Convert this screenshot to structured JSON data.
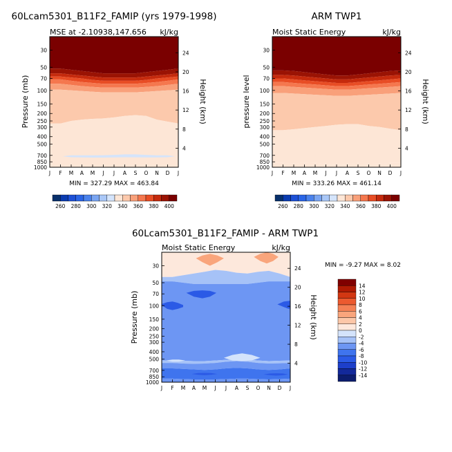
{
  "chart_data": [
    {
      "type": "heatmap",
      "title": "60Lcam5301_B11F2_FAMIP (yrs 1979-1998)",
      "subtitle_left": "MSE at -2.10938,147.656",
      "subtitle_right": "kJ/kg",
      "ylabel": "Pressure (mb)",
      "ylabel_right": "Height (km)",
      "x_ticks": [
        "J",
        "F",
        "M",
        "A",
        "M",
        "J",
        "J",
        "A",
        "S",
        "O",
        "N",
        "D",
        "J"
      ],
      "y_ticks": [
        30,
        50,
        70,
        100,
        150,
        200,
        250,
        300,
        400,
        500,
        700,
        850,
        1000
      ],
      "y_right_ticks": [
        24,
        20,
        16,
        12,
        8,
        4
      ],
      "ylim": [
        1000,
        20
      ],
      "stats_text": "MIN = 327.29 MAX = 463.84",
      "levels": [
        260,
        270,
        280,
        290,
        300,
        310,
        320,
        330,
        340,
        350,
        360,
        370,
        380,
        390,
        400
      ],
      "colorbar_labels": [
        "260",
        "280",
        "300",
        "320",
        "340",
        "360",
        "380",
        "400"
      ],
      "bands": [
        {
          "upper": [
            20,
            20,
            20,
            20,
            20,
            20,
            20,
            20,
            20,
            20,
            20,
            20,
            20
          ],
          "value": 405
        },
        {
          "upper": [
            52,
            52,
            54,
            56,
            58,
            60,
            60,
            60,
            60,
            58,
            56,
            54,
            52
          ],
          "value": 395
        },
        {
          "upper": [
            60,
            60,
            62,
            64,
            66,
            68,
            68,
            68,
            68,
            66,
            64,
            62,
            60
          ],
          "value": 385
        },
        {
          "upper": [
            66,
            66,
            68,
            70,
            73,
            75,
            75,
            75,
            75,
            73,
            70,
            68,
            66
          ],
          "value": 375
        },
        {
          "upper": [
            72,
            72,
            75,
            78,
            80,
            82,
            82,
            82,
            82,
            80,
            78,
            75,
            72
          ],
          "value": 365
        },
        {
          "upper": [
            82,
            82,
            85,
            88,
            90,
            92,
            92,
            92,
            92,
            90,
            88,
            85,
            82
          ],
          "value": 355
        },
        {
          "upper": [
            98,
            98,
            100,
            102,
            104,
            106,
            106,
            106,
            106,
            104,
            102,
            100,
            98
          ],
          "value": 345
        },
        {
          "upper": [
            270,
            270,
            250,
            240,
            235,
            232,
            225,
            215,
            210,
            215,
            240,
            255,
            270
          ],
          "value": 335
        },
        {
          "upper": [
            1000,
            1000,
            1000,
            1000,
            1000,
            1000,
            1000,
            1000,
            1000,
            1000,
            1000,
            1000,
            1000
          ],
          "value": 0
        }
      ],
      "islands": [
        {
          "months": [
            1.2,
            2,
            3,
            4,
            5,
            6,
            7,
            8,
            9,
            10,
            11,
            11.7
          ],
          "top": [
            720,
            700,
            700,
            700,
            698,
            690,
            680,
            680,
            690,
            700,
            700,
            720
          ],
          "bottom": [
            720,
            740,
            745,
            748,
            748,
            745,
            740,
            742,
            745,
            745,
            740,
            720
          ],
          "value": 325
        }
      ]
    },
    {
      "type": "heatmap",
      "title": "ARM TWP1",
      "subtitle_left": "Moist Static Energy",
      "subtitle_right": "kJ/kg",
      "ylabel": "pressure level",
      "ylabel_right": "Height (km)",
      "x_ticks": [
        "J",
        "F",
        "M",
        "A",
        "M",
        "J",
        "J",
        "A",
        "S",
        "O",
        "N",
        "D",
        "J"
      ],
      "y_ticks": [
        30,
        50,
        70,
        100,
        150,
        200,
        250,
        300,
        400,
        500,
        700,
        850,
        1000
      ],
      "y_right_ticks": [
        24,
        20,
        16,
        12,
        8,
        4
      ],
      "ylim": [
        1000,
        20
      ],
      "stats_text": "MIN = 333.26 MAX = 461.14",
      "levels": [
        260,
        270,
        280,
        290,
        300,
        310,
        320,
        330,
        340,
        350,
        360,
        370,
        380,
        390,
        400
      ],
      "colorbar_labels": [
        "260",
        "280",
        "300",
        "320",
        "340",
        "360",
        "380",
        "400"
      ],
      "bands": [
        {
          "upper": [
            20,
            20,
            20,
            20,
            20,
            20,
            20,
            20,
            20,
            20,
            20,
            20,
            20
          ],
          "value": 405
        },
        {
          "upper": [
            55,
            55,
            56,
            58,
            60,
            62,
            64,
            64,
            62,
            60,
            58,
            56,
            55
          ],
          "value": 395
        },
        {
          "upper": [
            63,
            63,
            64,
            66,
            68,
            70,
            72,
            72,
            70,
            68,
            66,
            64,
            63
          ],
          "value": 385
        },
        {
          "upper": [
            70,
            70,
            72,
            74,
            76,
            78,
            80,
            80,
            78,
            76,
            74,
            72,
            70
          ],
          "value": 375
        },
        {
          "upper": [
            78,
            78,
            80,
            82,
            84,
            86,
            88,
            88,
            86,
            84,
            82,
            80,
            78
          ],
          "value": 365
        },
        {
          "upper": [
            88,
            88,
            90,
            92,
            94,
            96,
            98,
            98,
            96,
            94,
            92,
            90,
            88
          ],
          "value": 355
        },
        {
          "upper": [
            108,
            108,
            110,
            112,
            114,
            116,
            118,
            118,
            116,
            114,
            112,
            110,
            108
          ],
          "value": 345
        },
        {
          "upper": [
            330,
            330,
            320,
            310,
            300,
            290,
            280,
            275,
            275,
            290,
            300,
            315,
            330
          ],
          "value": 335
        },
        {
          "upper": [
            880,
            880,
            900,
            870,
            880,
            900,
            920,
            900,
            880,
            890,
            900,
            880,
            880
          ],
          "value": 338
        },
        {
          "upper": [
            1000,
            1000,
            1000,
            1000,
            1000,
            1000,
            1000,
            1000,
            1000,
            1000,
            1000,
            1000,
            1000
          ],
          "value": 0
        }
      ],
      "islands": []
    },
    {
      "type": "heatmap",
      "title": "60Lcam5301_B11F2_FAMIP - ARM TWP1",
      "subtitle_left": "Moist Static Energy",
      "subtitle_right": "kJ/kg",
      "ylabel": "Pressure (mb)",
      "ylabel_right": "Height (km)",
      "x_ticks": [
        "J",
        "F",
        "M",
        "A",
        "M",
        "J",
        "J",
        "A",
        "S",
        "O",
        "N",
        "D",
        "J"
      ],
      "y_ticks": [
        30,
        50,
        70,
        100,
        150,
        200,
        250,
        300,
        400,
        500,
        700,
        850,
        1000
      ],
      "y_right_ticks": [
        24,
        20,
        16,
        12,
        8,
        4
      ],
      "ylim": [
        1000,
        20
      ],
      "stats_text": "MIN = -9.27 MAX =    8.02",
      "levels": [
        -14,
        -12,
        -10,
        -8,
        -6,
        -4,
        -2,
        0,
        2,
        4,
        6,
        8,
        10,
        12,
        14
      ],
      "colorbar_labels": [
        "14",
        "12",
        "10",
        "8",
        "6",
        "4",
        "2",
        "0",
        "-2",
        "-4",
        "-6",
        "-8",
        "-10",
        "-12",
        "-14"
      ],
      "bands": [
        {
          "upper": [
            20,
            20,
            20,
            20,
            20,
            20,
            20,
            20,
            20,
            20,
            20,
            20,
            20
          ],
          "value": 1
        },
        {
          "upper": [
            42,
            42,
            40,
            38,
            36,
            34,
            35,
            37,
            38,
            36,
            35,
            38,
            42
          ],
          "value": -3
        },
        {
          "upper": [
            48,
            48,
            50,
            52,
            52,
            52,
            52,
            52,
            52,
            50,
            48,
            48,
            48
          ],
          "value": -5
        },
        {
          "upper": [
            520,
            520,
            525,
            530,
            530,
            520,
            510,
            500,
            505,
            520,
            530,
            525,
            520
          ],
          "value": -3
        },
        {
          "upper": [
            560,
            560,
            570,
            575,
            570,
            560,
            540,
            530,
            540,
            560,
            570,
            565,
            560
          ],
          "value": -5
        },
        {
          "upper": [
            660,
            660,
            670,
            680,
            690,
            680,
            660,
            650,
            660,
            680,
            690,
            680,
            660
          ],
          "value": -7
        },
        {
          "upper": [
            900,
            900,
            910,
            920,
            920,
            920,
            910,
            900,
            900,
            910,
            920,
            910,
            900
          ],
          "value": -5
        },
        {
          "upper": [
            1000,
            1000,
            1000,
            1000,
            1000,
            1000,
            1000,
            1000,
            1000,
            1000,
            1000,
            1000,
            1000
          ],
          "value": 0
        }
      ],
      "islands": [
        {
          "months": [
            0,
            0.6,
            1.2,
            1.8,
            2.3
          ],
          "top": [
            28,
            26,
            25,
            26,
            28
          ],
          "bottom": [
            28,
            32,
            36,
            34,
            28
          ],
          "value": 1
        },
        {
          "months": [
            3.2,
            3.8,
            4.5,
            5.2,
            5.8
          ],
          "top": [
            24,
            22,
            21,
            22,
            24
          ],
          "bottom": [
            24,
            27,
            30,
            27,
            24
          ],
          "value": 5
        },
        {
          "months": [
            8.6,
            9.2,
            9.8,
            10.4,
            10.9
          ],
          "top": [
            23,
            21,
            20,
            21,
            23
          ],
          "bottom": [
            23,
            26,
            28,
            26,
            23
          ],
          "value": 5
        },
        {
          "months": [
            2.3,
            3,
            3.8,
            4.5,
            5.1
          ],
          "top": [
            68,
            64,
            63,
            64,
            68
          ],
          "bottom": [
            68,
            76,
            80,
            76,
            68
          ],
          "value": -9
        },
        {
          "months": [
            0,
            0.5,
            1,
            1.5,
            2
          ],
          "top": [
            95,
            90,
            88,
            92,
            98
          ],
          "bottom": [
            98,
            110,
            114,
            110,
            104
          ],
          "value": -9
        },
        {
          "months": [
            10.8,
            11.4,
            12,
            12,
            11.6
          ],
          "top": [
            96,
            88,
            86,
            110,
            105
          ],
          "bottom": [
            96,
            104,
            112,
            114,
            100
          ],
          "value": -9
        },
        {
          "months": [
            5.8,
            6.6,
            7.5,
            8.4,
            9.2
          ],
          "top": [
            480,
            440,
            420,
            440,
            480
          ],
          "bottom": [
            480,
            520,
            530,
            520,
            480
          ],
          "value": -1
        },
        {
          "months": [
            0.4,
            1,
            1.6,
            2.2
          ],
          "top": [
            520,
            505,
            505,
            520
          ],
          "bottom": [
            520,
            540,
            540,
            520
          ],
          "value": -1
        },
        {
          "months": [
            2.8,
            3.4,
            4,
            4.6,
            5.2
          ],
          "top": [
            780,
            760,
            755,
            760,
            780
          ],
          "bottom": [
            780,
            800,
            810,
            800,
            780
          ],
          "value": -9
        },
        {
          "months": [
            9.5,
            10.1,
            10.7,
            11.3,
            11.8
          ],
          "top": [
            790,
            770,
            765,
            770,
            790
          ],
          "bottom": [
            790,
            810,
            820,
            810,
            790
          ],
          "value": -9
        }
      ]
    }
  ]
}
